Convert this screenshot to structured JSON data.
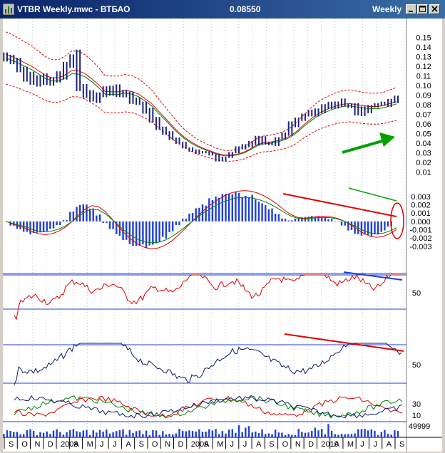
{
  "window": {
    "title": "VTBR Weekly.mwc - ВТБАО",
    "price": "0.08550",
    "period": "Weekly",
    "buttons": [
      "minimize-icon",
      "maximize-icon",
      "close-icon"
    ]
  },
  "colors": {
    "price_bars": "#1a237e",
    "moving_avg_red": "#e00000",
    "moving_avg_green": "#008000",
    "envelope": "#e00000",
    "macd_hist": "#1f3fd8",
    "rsi": "#e00000",
    "stoch": "#0a1a6a",
    "level_line": "#1f3fd8",
    "annotation_red": "#e00000",
    "annotation_green": "#00a000",
    "annotation_blue": "#1f3fd8",
    "volume": "#1f3fd8"
  },
  "chart_data": [
    {
      "type": "candlestick",
      "panel": "price",
      "y_ticks": [
        "0.15",
        "0.14",
        "0.13",
        "0.12",
        "0.11",
        "0.10",
        "0.09",
        "0.08",
        "0.07",
        "0.06",
        "0.05",
        "0.04",
        "0.03",
        "0.02",
        "0.01"
      ],
      "ylim": [
        0.005,
        0.155
      ],
      "x_labels": [
        "S",
        "O",
        "N",
        "D",
        "2008",
        "A",
        "M",
        "J",
        "J",
        "A",
        "S",
        "O",
        "N",
        "D",
        "2009",
        "A",
        "M",
        "J",
        "J",
        "A",
        "S",
        "O",
        "N",
        "D",
        "2010",
        "A",
        "M",
        "J",
        "J",
        "A",
        "S"
      ],
      "weekly_close_approx": [
        0.13,
        0.125,
        0.118,
        0.11,
        0.104,
        0.108,
        0.102,
        0.105,
        0.11,
        0.12,
        0.13,
        0.1,
        0.09,
        0.085,
        0.09,
        0.095,
        0.098,
        0.09,
        0.092,
        0.085,
        0.082,
        0.075,
        0.065,
        0.055,
        0.05,
        0.045,
        0.04,
        0.035,
        0.032,
        0.03,
        0.03,
        0.028,
        0.022,
        0.025,
        0.03,
        0.035,
        0.038,
        0.04,
        0.045,
        0.04,
        0.038,
        0.045,
        0.05,
        0.06,
        0.065,
        0.07,
        0.072,
        0.075,
        0.078,
        0.08,
        0.082,
        0.08,
        0.078,
        0.072,
        0.075,
        0.078,
        0.08,
        0.082,
        0.083,
        0.085
      ],
      "current_price": 0.0855
    },
    {
      "type": "histogram",
      "panel": "macd",
      "y_ticks": [
        "0.003",
        "0.002",
        "0.001",
        "0.000",
        "-0.001",
        "-0.002",
        "-0.003"
      ],
      "ylim": [
        -0.0037,
        0.0035
      ]
    },
    {
      "type": "line",
      "panel": "rsi",
      "y_ticks": [
        "50"
      ]
    },
    {
      "type": "line",
      "panel": "stochastic",
      "y_ticks": [
        "50"
      ]
    },
    {
      "type": "line",
      "panel": "adx",
      "y_ticks": [
        "30",
        "10"
      ]
    },
    {
      "type": "bar",
      "panel": "volume",
      "y_ticks": [
        "49999"
      ],
      "scale_note": "x10000000"
    }
  ]
}
